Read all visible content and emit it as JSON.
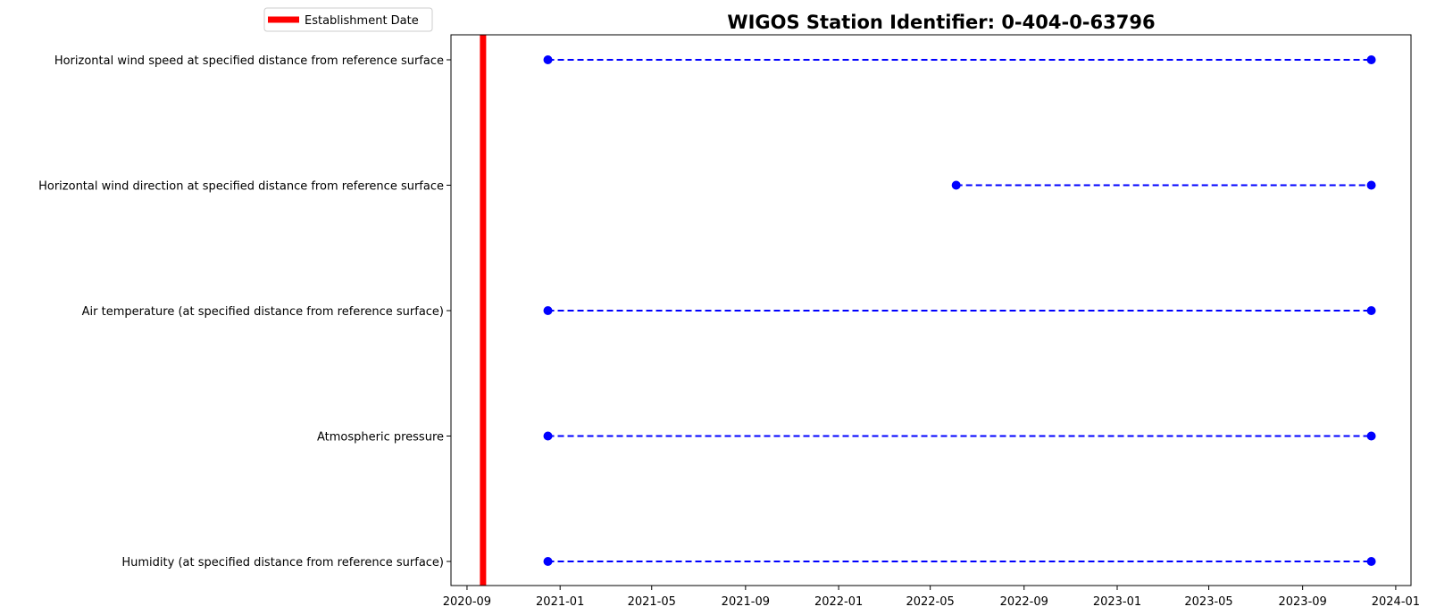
{
  "chart_data": {
    "type": "timeline",
    "title": "WIGOS Station Identifier: 0-404-0-63796",
    "xlabel": "",
    "ylabel": "",
    "xlim": [
      "2020-08-11",
      "2024-01-21"
    ],
    "x_ticks": [
      "2020-09",
      "2021-01",
      "2021-05",
      "2021-09",
      "2022-01",
      "2022-05",
      "2022-09",
      "2023-01",
      "2023-05",
      "2023-09",
      "2024-01"
    ],
    "categories": [
      "Horizontal wind speed at specified distance from reference surface",
      "Horizontal wind direction at specified distance from reference surface",
      "Air temperature (at specified distance from reference surface)",
      "Atmospheric pressure",
      "Humidity  (at specified distance from reference surface)"
    ],
    "series": [
      {
        "category": "Horizontal wind speed at specified distance from reference surface",
        "start": "2020-12-16",
        "end": "2023-11-30"
      },
      {
        "category": "Horizontal wind direction at specified distance from reference surface",
        "start": "2022-06-04",
        "end": "2023-11-30"
      },
      {
        "category": "Air temperature (at specified distance from reference surface)",
        "start": "2020-12-16",
        "end": "2023-11-30"
      },
      {
        "category": "Atmospheric pressure",
        "start": "2020-12-16",
        "end": "2023-11-30"
      },
      {
        "category": "Humidity  (at specified distance from reference surface)",
        "start": "2020-12-16",
        "end": "2023-11-30"
      }
    ],
    "establishment_date": "2020-09-22",
    "legend": {
      "label": "Establishment Date",
      "placement": "top-left"
    },
    "grid": false,
    "colors": {
      "series": "#0000ff",
      "establishment": "#ff0000"
    }
  }
}
